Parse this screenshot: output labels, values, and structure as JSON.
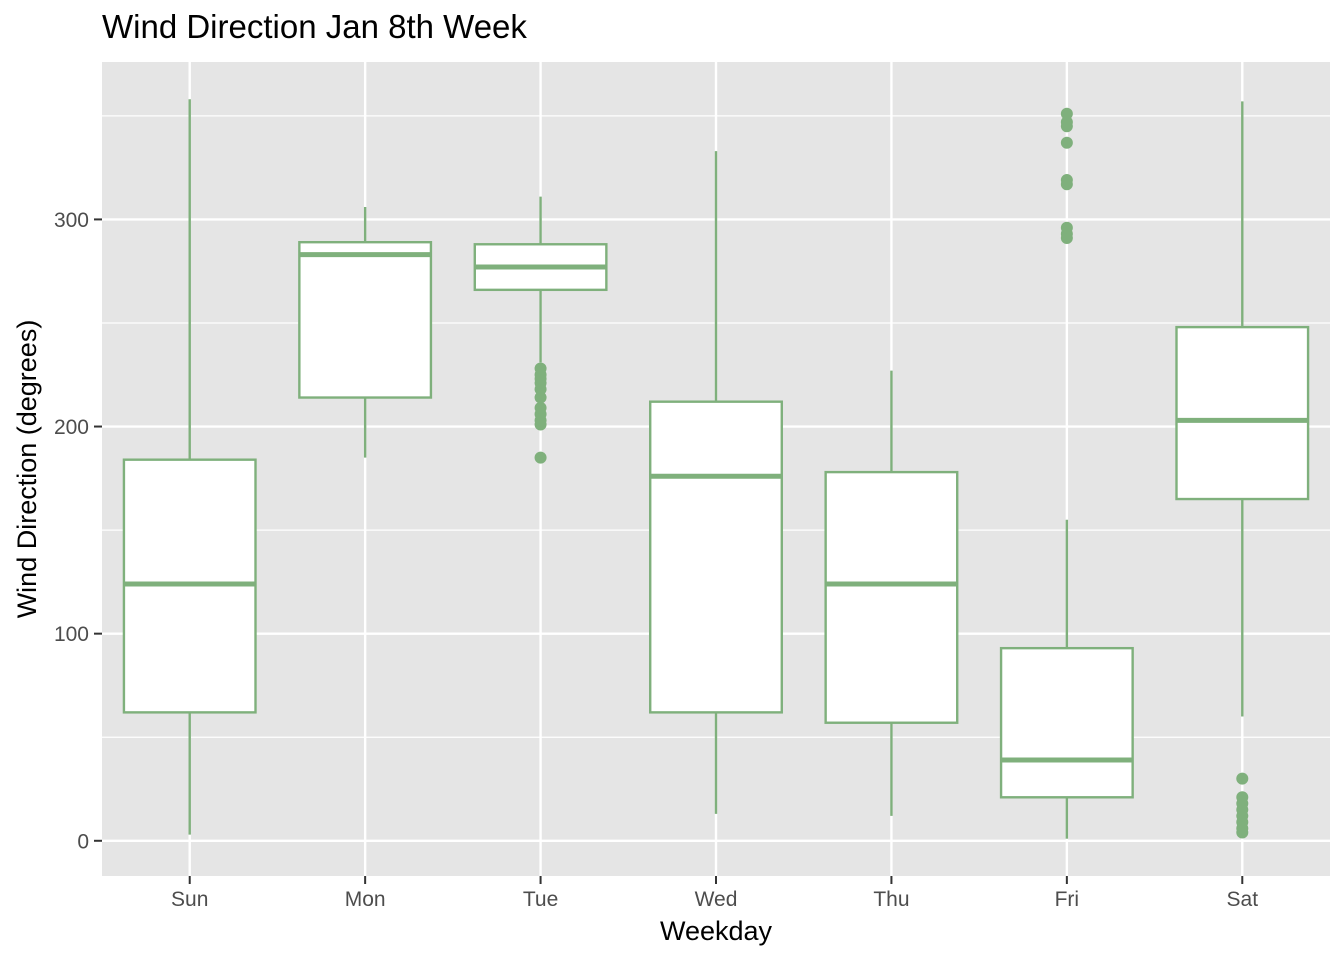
{
  "chart_data": {
    "type": "boxplot",
    "title": "Wind Direction Jan 8th Week",
    "xlabel": "Weekday",
    "ylabel": "Wind Direction (degrees)",
    "categories": [
      "Sun",
      "Mon",
      "Tue",
      "Wed",
      "Thu",
      "Fri",
      "Sat"
    ],
    "y_ticks": [
      0,
      100,
      200,
      300
    ],
    "y_tick_labels": [
      "0",
      "100",
      "200",
      "300"
    ],
    "ylim": [
      -17,
      376
    ],
    "grid": true,
    "colors": {
      "panel": "#e5e5e5",
      "grid": "#ffffff",
      "box_outline": "#7fb07c",
      "box_fill": "#ffffff"
    },
    "boxes": [
      {
        "category": "Sun",
        "min": 3,
        "q1": 62,
        "median": 124,
        "q3": 184,
        "max": 358,
        "outliers": []
      },
      {
        "category": "Mon",
        "min": 185,
        "q1": 214,
        "median": 283,
        "q3": 289,
        "max": 306,
        "outliers": []
      },
      {
        "category": "Tue",
        "min": 231,
        "q1": 266,
        "median": 277,
        "q3": 288,
        "max": 311,
        "outliers": [
          185,
          201,
          203,
          206,
          209,
          214,
          218,
          221,
          223,
          225,
          228
        ]
      },
      {
        "category": "Wed",
        "min": 13,
        "q1": 62,
        "median": 176,
        "q3": 212,
        "max": 333,
        "outliers": []
      },
      {
        "category": "Thu",
        "min": 12,
        "q1": 57,
        "median": 124,
        "q3": 178,
        "max": 227,
        "outliers": []
      },
      {
        "category": "Fri",
        "min": 1,
        "q1": 21,
        "median": 39,
        "q3": 93,
        "max": 155,
        "outliers": [
          291,
          293,
          296,
          317,
          319,
          337,
          345,
          347,
          351
        ]
      },
      {
        "category": "Sat",
        "min": 60,
        "q1": 165,
        "median": 203,
        "q3": 248,
        "max": 357,
        "outliers": [
          4,
          6,
          9,
          12,
          15,
          18,
          21,
          30
        ]
      }
    ]
  }
}
